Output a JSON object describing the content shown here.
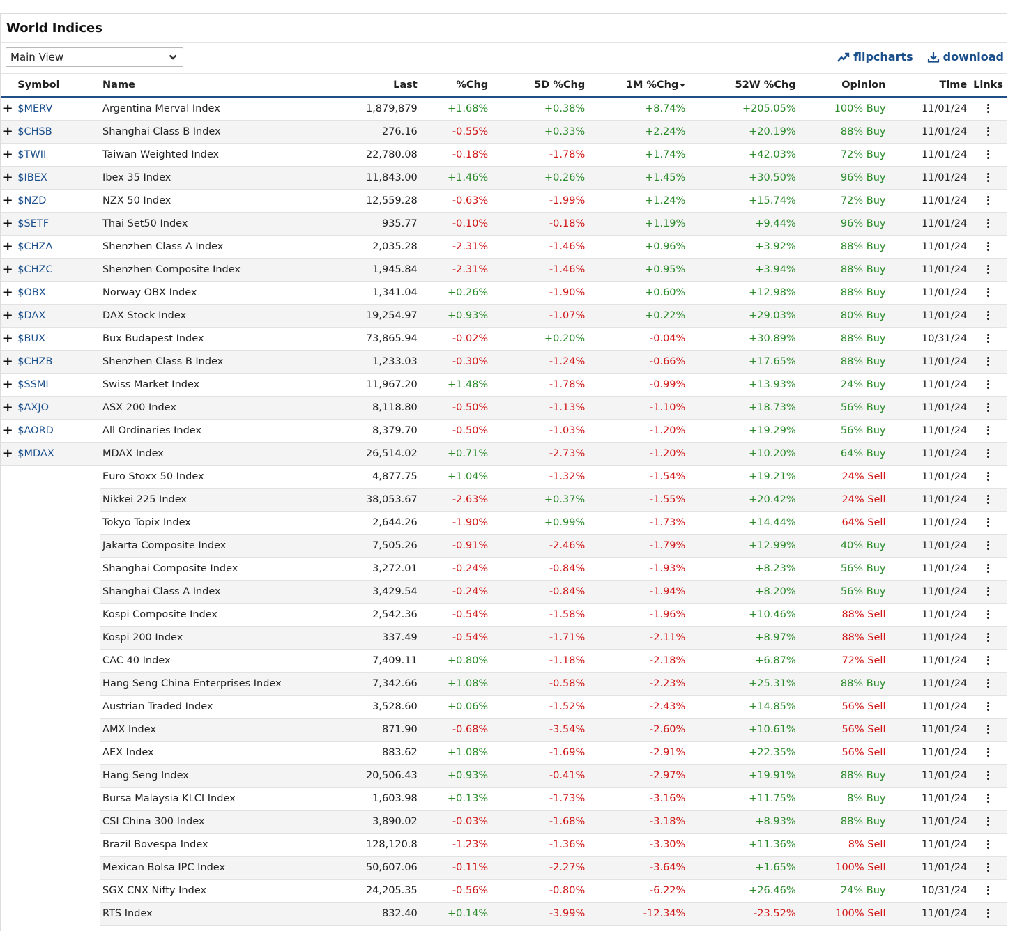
{
  "title": "World Indices",
  "view_select": {
    "value": "Main View"
  },
  "toolbar": {
    "flipcharts": "flipcharts",
    "download": "download"
  },
  "columns": {
    "symbol": "Symbol",
    "name": "Name",
    "last": "Last",
    "chg": "%Chg",
    "chg5d": "5D %Chg",
    "chg1m": "1M %Chg",
    "chg52w": "52W %Chg",
    "opinion": "Opinion",
    "time": "Time",
    "links": "Links"
  },
  "colors": {
    "positive": "#2a8a2a",
    "negative": "#d01818",
    "link": "#1a4f8c"
  },
  "rows": [
    {
      "symbol": "$MERV",
      "name": "Argentina Merval Index",
      "last": "1,879,879",
      "chg": "+1.68%",
      "chg5d": "+0.38%",
      "chg1m": "+8.74%",
      "chg52w": "+205.05%",
      "opinion": "100% Buy",
      "time": "11/01/24"
    },
    {
      "symbol": "$CHSB",
      "name": "Shanghai Class B Index",
      "last": "276.16",
      "chg": "-0.55%",
      "chg5d": "+0.33%",
      "chg1m": "+2.24%",
      "chg52w": "+20.19%",
      "opinion": "88% Buy",
      "time": "11/01/24"
    },
    {
      "symbol": "$TWII",
      "name": "Taiwan Weighted Index",
      "last": "22,780.08",
      "chg": "-0.18%",
      "chg5d": "-1.78%",
      "chg1m": "+1.74%",
      "chg52w": "+42.03%",
      "opinion": "72% Buy",
      "time": "11/01/24"
    },
    {
      "symbol": "$IBEX",
      "name": "Ibex 35 Index",
      "last": "11,843.00",
      "chg": "+1.46%",
      "chg5d": "+0.26%",
      "chg1m": "+1.45%",
      "chg52w": "+30.50%",
      "opinion": "96% Buy",
      "time": "11/01/24"
    },
    {
      "symbol": "$NZD",
      "name": "NZX 50 Index",
      "last": "12,559.28",
      "chg": "-0.63%",
      "chg5d": "-1.99%",
      "chg1m": "+1.24%",
      "chg52w": "+15.74%",
      "opinion": "72% Buy",
      "time": "11/01/24"
    },
    {
      "symbol": "$SETF",
      "name": "Thai Set50 Index",
      "last": "935.77",
      "chg": "-0.10%",
      "chg5d": "-0.18%",
      "chg1m": "+1.19%",
      "chg52w": "+9.44%",
      "opinion": "96% Buy",
      "time": "11/01/24"
    },
    {
      "symbol": "$CHZA",
      "name": "Shenzhen Class A Index",
      "last": "2,035.28",
      "chg": "-2.31%",
      "chg5d": "-1.46%",
      "chg1m": "+0.96%",
      "chg52w": "+3.92%",
      "opinion": "88% Buy",
      "time": "11/01/24"
    },
    {
      "symbol": "$CHZC",
      "name": "Shenzhen Composite Index",
      "last": "1,945.84",
      "chg": "-2.31%",
      "chg5d": "-1.46%",
      "chg1m": "+0.95%",
      "chg52w": "+3.94%",
      "opinion": "88% Buy",
      "time": "11/01/24"
    },
    {
      "symbol": "$OBX",
      "name": "Norway OBX Index",
      "last": "1,341.04",
      "chg": "+0.26%",
      "chg5d": "-1.90%",
      "chg1m": "+0.60%",
      "chg52w": "+12.98%",
      "opinion": "88% Buy",
      "time": "11/01/24"
    },
    {
      "symbol": "$DAX",
      "name": "DAX Stock Index",
      "last": "19,254.97",
      "chg": "+0.93%",
      "chg5d": "-1.07%",
      "chg1m": "+0.22%",
      "chg52w": "+29.03%",
      "opinion": "80% Buy",
      "time": "11/01/24"
    },
    {
      "symbol": "$BUX",
      "name": "Bux Budapest Index",
      "last": "73,865.94",
      "chg": "-0.02%",
      "chg5d": "+0.20%",
      "chg1m": "-0.04%",
      "chg52w": "+30.89%",
      "opinion": "88% Buy",
      "time": "10/31/24"
    },
    {
      "symbol": "$CHZB",
      "name": "Shenzhen Class B Index",
      "last": "1,233.03",
      "chg": "-0.30%",
      "chg5d": "-1.24%",
      "chg1m": "-0.66%",
      "chg52w": "+17.65%",
      "opinion": "88% Buy",
      "time": "11/01/24"
    },
    {
      "symbol": "$SSMI",
      "name": "Swiss Market Index",
      "last": "11,967.20",
      "chg": "+1.48%",
      "chg5d": "-1.78%",
      "chg1m": "-0.99%",
      "chg52w": "+13.93%",
      "opinion": "24% Buy",
      "time": "11/01/24"
    },
    {
      "symbol": "$AXJO",
      "name": "ASX 200 Index",
      "last": "8,118.80",
      "chg": "-0.50%",
      "chg5d": "-1.13%",
      "chg1m": "-1.10%",
      "chg52w": "+18.73%",
      "opinion": "56% Buy",
      "time": "11/01/24"
    },
    {
      "symbol": "$AORD",
      "name": "All Ordinaries Index",
      "last": "8,379.70",
      "chg": "-0.50%",
      "chg5d": "-1.03%",
      "chg1m": "-1.20%",
      "chg52w": "+19.29%",
      "opinion": "56% Buy",
      "time": "11/01/24"
    },
    {
      "symbol": "$MDAX",
      "name": "MDAX Index",
      "last": "26,514.02",
      "chg": "+0.71%",
      "chg5d": "-2.73%",
      "chg1m": "-1.20%",
      "chg52w": "+10.20%",
      "opinion": "64% Buy",
      "time": "11/01/24"
    },
    {
      "symbol": "",
      "name": "Euro Stoxx 50 Index",
      "last": "4,877.75",
      "chg": "+1.04%",
      "chg5d": "-1.32%",
      "chg1m": "-1.54%",
      "chg52w": "+19.21%",
      "opinion": "24% Sell",
      "time": "11/01/24"
    },
    {
      "symbol": "",
      "name": "Nikkei 225 Index",
      "last": "38,053.67",
      "chg": "-2.63%",
      "chg5d": "+0.37%",
      "chg1m": "-1.55%",
      "chg52w": "+20.42%",
      "opinion": "24% Sell",
      "time": "11/01/24"
    },
    {
      "symbol": "",
      "name": "Tokyo Topix Index",
      "last": "2,644.26",
      "chg": "-1.90%",
      "chg5d": "+0.99%",
      "chg1m": "-1.73%",
      "chg52w": "+14.44%",
      "opinion": "64% Sell",
      "time": "11/01/24"
    },
    {
      "symbol": "",
      "name": "Jakarta Composite Index",
      "last": "7,505.26",
      "chg": "-0.91%",
      "chg5d": "-2.46%",
      "chg1m": "-1.79%",
      "chg52w": "+12.99%",
      "opinion": "40% Buy",
      "time": "11/01/24"
    },
    {
      "symbol": "",
      "name": "Shanghai Composite Index",
      "last": "3,272.01",
      "chg": "-0.24%",
      "chg5d": "-0.84%",
      "chg1m": "-1.93%",
      "chg52w": "+8.23%",
      "opinion": "56% Buy",
      "time": "11/01/24"
    },
    {
      "symbol": "",
      "name": "Shanghai Class A Index",
      "last": "3,429.54",
      "chg": "-0.24%",
      "chg5d": "-0.84%",
      "chg1m": "-1.94%",
      "chg52w": "+8.20%",
      "opinion": "56% Buy",
      "time": "11/01/24"
    },
    {
      "symbol": "",
      "name": "Kospi Composite Index",
      "last": "2,542.36",
      "chg": "-0.54%",
      "chg5d": "-1.58%",
      "chg1m": "-1.96%",
      "chg52w": "+10.46%",
      "opinion": "88% Sell",
      "time": "11/01/24"
    },
    {
      "symbol": "",
      "name": "Kospi 200 Index",
      "last": "337.49",
      "chg": "-0.54%",
      "chg5d": "-1.71%",
      "chg1m": "-2.11%",
      "chg52w": "+8.97%",
      "opinion": "88% Sell",
      "time": "11/01/24"
    },
    {
      "symbol": "",
      "name": "CAC 40 Index",
      "last": "7,409.11",
      "chg": "+0.80%",
      "chg5d": "-1.18%",
      "chg1m": "-2.18%",
      "chg52w": "+6.87%",
      "opinion": "72% Sell",
      "time": "11/01/24"
    },
    {
      "symbol": "",
      "name": "Hang Seng China Enterprises Index",
      "last": "7,342.66",
      "chg": "+1.08%",
      "chg5d": "-0.58%",
      "chg1m": "-2.23%",
      "chg52w": "+25.31%",
      "opinion": "88% Buy",
      "time": "11/01/24"
    },
    {
      "symbol": "",
      "name": "Austrian Traded Index",
      "last": "3,528.60",
      "chg": "+0.06%",
      "chg5d": "-1.52%",
      "chg1m": "-2.43%",
      "chg52w": "+14.85%",
      "opinion": "56% Sell",
      "time": "11/01/24"
    },
    {
      "symbol": "",
      "name": "AMX Index",
      "last": "871.90",
      "chg": "-0.68%",
      "chg5d": "-3.54%",
      "chg1m": "-2.60%",
      "chg52w": "+10.61%",
      "opinion": "56% Sell",
      "time": "11/01/24"
    },
    {
      "symbol": "",
      "name": "AEX Index",
      "last": "883.62",
      "chg": "+1.08%",
      "chg5d": "-1.69%",
      "chg1m": "-2.91%",
      "chg52w": "+22.35%",
      "opinion": "56% Sell",
      "time": "11/01/24"
    },
    {
      "symbol": "",
      "name": "Hang Seng Index",
      "last": "20,506.43",
      "chg": "+0.93%",
      "chg5d": "-0.41%",
      "chg1m": "-2.97%",
      "chg52w": "+19.91%",
      "opinion": "88% Buy",
      "time": "11/01/24"
    },
    {
      "symbol": "",
      "name": "Bursa Malaysia KLCI Index",
      "last": "1,603.98",
      "chg": "+0.13%",
      "chg5d": "-1.73%",
      "chg1m": "-3.16%",
      "chg52w": "+11.75%",
      "opinion": "8% Buy",
      "time": "11/01/24"
    },
    {
      "symbol": "",
      "name": "CSI China 300 Index",
      "last": "3,890.02",
      "chg": "-0.03%",
      "chg5d": "-1.68%",
      "chg1m": "-3.18%",
      "chg52w": "+8.93%",
      "opinion": "88% Buy",
      "time": "11/01/24"
    },
    {
      "symbol": "",
      "name": "Brazil Bovespa Index",
      "last": "128,120.8",
      "chg": "-1.23%",
      "chg5d": "-1.36%",
      "chg1m": "-3.30%",
      "chg52w": "+11.36%",
      "opinion": "8% Sell",
      "time": "11/01/24"
    },
    {
      "symbol": "",
      "name": "Mexican Bolsa IPC Index",
      "last": "50,607.06",
      "chg": "-0.11%",
      "chg5d": "-2.27%",
      "chg1m": "-3.64%",
      "chg52w": "+1.65%",
      "opinion": "100% Sell",
      "time": "11/01/24"
    },
    {
      "symbol": "",
      "name": "SGX CNX Nifty Index",
      "last": "24,205.35",
      "chg": "-0.56%",
      "chg5d": "-0.80%",
      "chg1m": "-6.22%",
      "chg52w": "+26.46%",
      "opinion": "24% Buy",
      "time": "10/31/24"
    },
    {
      "symbol": "",
      "name": "RTS Index",
      "last": "832.40",
      "chg": "+0.14%",
      "chg5d": "-3.99%",
      "chg1m": "-12.34%",
      "chg52w": "-23.52%",
      "opinion": "100% Sell",
      "time": "11/01/24"
    }
  ]
}
